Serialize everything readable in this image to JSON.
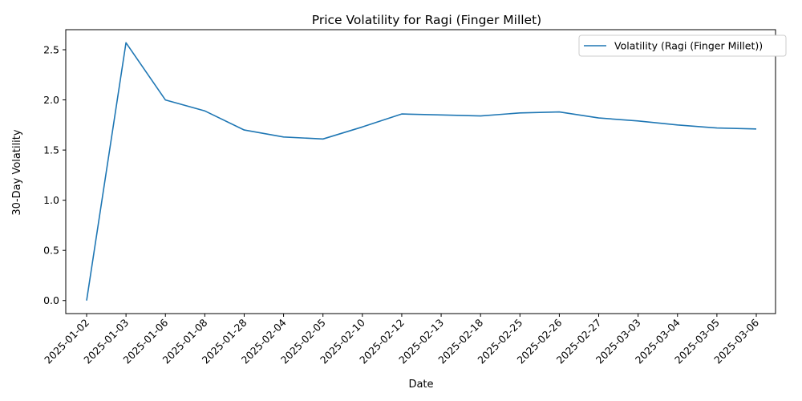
{
  "chart_data": {
    "type": "line",
    "title": "Price Volatility for Ragi (Finger Millet)",
    "xlabel": "Date",
    "ylabel": "30-Day Volatility",
    "x": [
      "2025-01-02",
      "2025-01-03",
      "2025-01-06",
      "2025-01-08",
      "2025-01-28",
      "2025-02-04",
      "2025-02-05",
      "2025-02-10",
      "2025-02-12",
      "2025-02-13",
      "2025-02-18",
      "2025-02-25",
      "2025-02-26",
      "2025-02-27",
      "2025-03-03",
      "2025-03-04",
      "2025-03-05",
      "2025-03-06"
    ],
    "series": [
      {
        "name": "Volatility (Ragi (Finger Millet))",
        "color": "#1f77b4",
        "values": [
          0.0,
          2.57,
          2.0,
          1.89,
          1.7,
          1.63,
          1.61,
          1.73,
          1.86,
          1.85,
          1.84,
          1.87,
          1.88,
          1.82,
          1.79,
          1.75,
          1.72,
          1.71
        ]
      }
    ],
    "yticks": [
      "0.0",
      "0.5",
      "1.0",
      "1.5",
      "2.0",
      "2.5"
    ],
    "ylim": [
      -0.13,
      2.7
    ],
    "grid": false,
    "legend": "top-right"
  }
}
